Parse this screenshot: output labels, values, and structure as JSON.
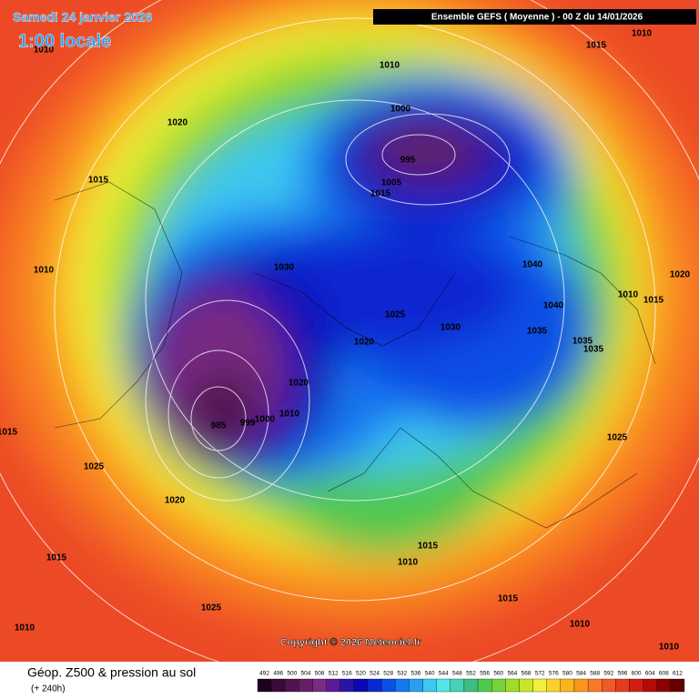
{
  "header": {
    "date": "Samedi 24 janvier 2026",
    "local_time": "1:00 locale",
    "model": "Ensemble GEFS  ( Moyenne )  -  00 Z du 14/01/2026"
  },
  "copyright": "Copyright © 2026 Meteociel.fr",
  "footer": {
    "product": "Géop. Z500 & pression au sol",
    "lead": "(+ 240h)"
  },
  "legend": {
    "values": [
      492,
      496,
      500,
      504,
      508,
      512,
      516,
      520,
      524,
      528,
      532,
      536,
      540,
      544,
      548,
      552,
      556,
      560,
      564,
      568,
      572,
      576,
      580,
      584,
      588,
      592,
      596,
      600,
      604,
      608,
      612
    ],
    "colors": [
      "#200020",
      "#3a0a3a",
      "#501450",
      "#642064",
      "#782c82",
      "#5a1a9a",
      "#2a14a6",
      "#0a0ab4",
      "#0a28d2",
      "#0a50e6",
      "#1478f0",
      "#28a0f0",
      "#3cc8f0",
      "#50e6e6",
      "#46d2b4",
      "#3cbe82",
      "#50c850",
      "#78d23c",
      "#a0dc28",
      "#c8e628",
      "#f0f03c",
      "#fad228",
      "#fab41e",
      "#fa961e",
      "#fa7828",
      "#f05a28",
      "#e63c1e",
      "#d21e14",
      "#b40a0a",
      "#8c0000",
      "#640000"
    ]
  },
  "contour_labels": [
    "1010",
    "1015",
    "1010",
    "1010",
    "1020",
    "1000",
    "995",
    "1005",
    "1015",
    "1015",
    "1040",
    "1020",
    "1010",
    "1030",
    "1010",
    "1015",
    "1040",
    "1025",
    "1030",
    "1035",
    "1035",
    "1035",
    "1020",
    "1020",
    "1010",
    "1000",
    "999",
    "985",
    "1025",
    "1015",
    "1025",
    "1020",
    "1015",
    "1015",
    "1010",
    "1015",
    "1025",
    "1010",
    "1010",
    "1010"
  ]
}
